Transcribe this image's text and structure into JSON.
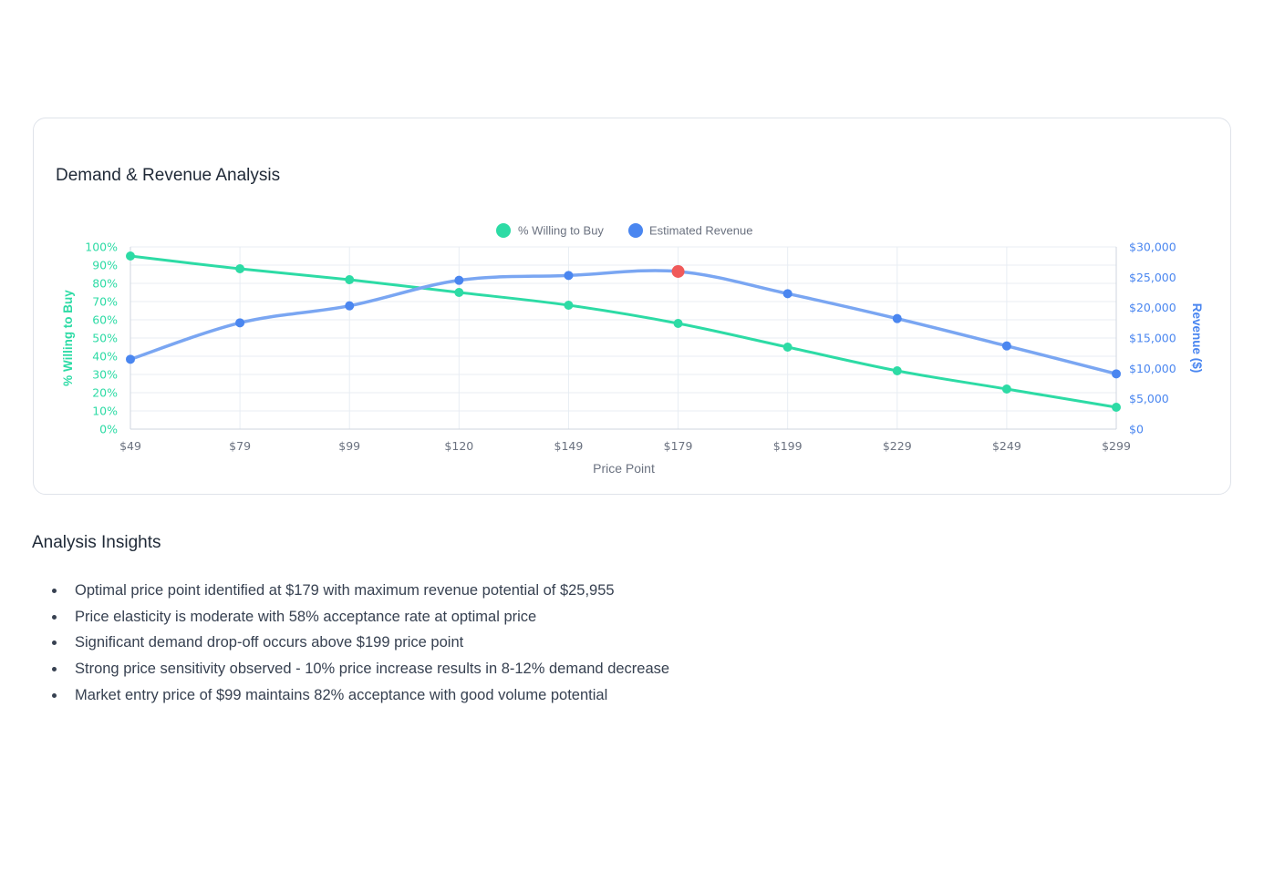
{
  "card": {
    "title": "Demand & Revenue Analysis"
  },
  "colors": {
    "demand": "#2ddba5",
    "revenue": "#4a86f0",
    "revenue_line": "#7aa6f2",
    "optimal": "#f05a5a",
    "grid": "#e8edf3",
    "axis_text": "#6b7280"
  },
  "chart_data": {
    "type": "line",
    "x": [
      "$49",
      "$79",
      "$99",
      "$120",
      "$149",
      "$179",
      "$199",
      "$229",
      "$249",
      "$299"
    ],
    "xlabel": "Price Point",
    "y_left_label": "% Willing to Buy",
    "y_right_label": "Revenue ($)",
    "y_left_ticks": [
      "0%",
      "10%",
      "20%",
      "30%",
      "40%",
      "50%",
      "60%",
      "70%",
      "80%",
      "90%",
      "100%"
    ],
    "y_right_ticks": [
      "$0",
      "$5,000",
      "$10,000",
      "$15,000",
      "$20,000",
      "$25,000",
      "$30,000"
    ],
    "y_left_lim": [
      0,
      100
    ],
    "y_right_lim": [
      0,
      30000
    ],
    "series": [
      {
        "name": "% Willing to Buy",
        "axis": "left",
        "values": [
          95,
          88,
          82,
          75,
          68,
          58,
          45,
          32,
          22,
          12
        ]
      },
      {
        "name": "Estimated Revenue",
        "axis": "right",
        "values": [
          11500,
          17500,
          20300,
          24500,
          25300,
          25955,
          22300,
          18200,
          13700,
          9100
        ]
      }
    ],
    "highlight": {
      "series": "Estimated Revenue",
      "index": 5
    },
    "legend": "top-center",
    "grid": true
  },
  "insights": {
    "title": "Analysis Insights",
    "items": [
      "Optimal price point identified at $179 with maximum revenue potential of $25,955",
      "Price elasticity is moderate with 58% acceptance rate at optimal price",
      "Significant demand drop-off occurs above $199 price point",
      "Strong price sensitivity observed - 10% price increase results in 8-12% demand decrease",
      "Market entry price of $99 maintains 82% acceptance with good volume potential"
    ]
  }
}
